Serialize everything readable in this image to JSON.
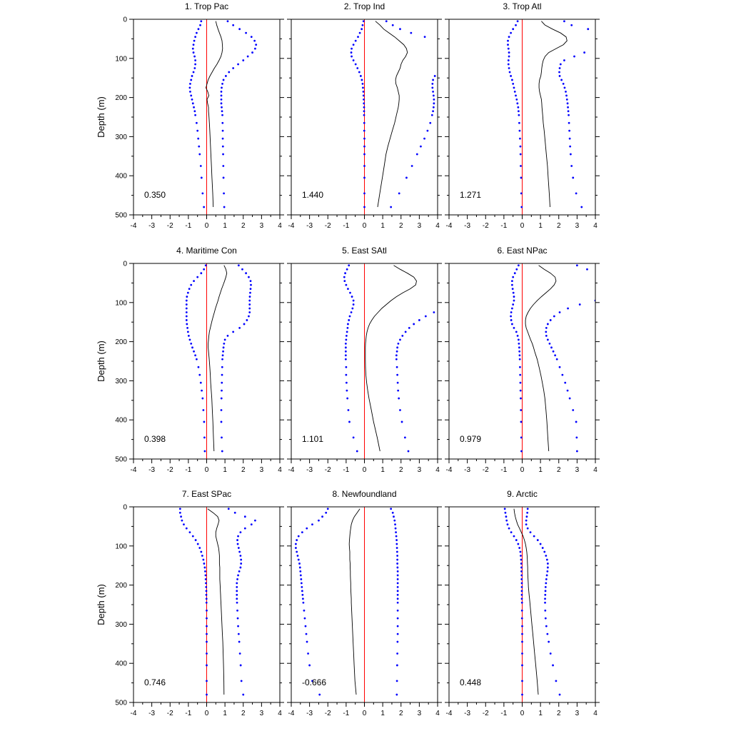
{
  "chart_data": {
    "type": "line",
    "xlim": [
      -4,
      4
    ],
    "ylim": [
      0,
      500
    ],
    "y_reversed": true,
    "xticks": [
      -4,
      -3,
      -2,
      -1,
      0,
      1,
      2,
      3,
      4
    ],
    "xticklabels": [
      "-4",
      "-3",
      "-2",
      "-1",
      "0",
      "1",
      "2",
      "3",
      "4"
    ],
    "yticks": [
      0,
      100,
      200,
      300,
      400,
      500
    ],
    "yticklabels": [
      "0",
      "100",
      "200",
      "300",
      "400",
      "500"
    ],
    "ylabel": "Depth (m)",
    "grid": false,
    "colors": {
      "mean": "#000000",
      "bounds": "#0000ff",
      "zero_line": "#ff0000",
      "axes": "#000000"
    },
    "depths": [
      5,
      15,
      25,
      35,
      45,
      55,
      65,
      75,
      85,
      95,
      105,
      115,
      125,
      135,
      145,
      155,
      165,
      175,
      185,
      195,
      205,
      215,
      225,
      235,
      245,
      265,
      285,
      305,
      325,
      345,
      375,
      405,
      445,
      480
    ],
    "panels": [
      {
        "title": "1. Trop Pac",
        "value": "0.350",
        "mean": [
          0.5,
          0.55,
          0.62,
          0.7,
          0.78,
          0.84,
          0.86,
          0.87,
          0.84,
          0.78,
          0.68,
          0.56,
          0.42,
          0.3,
          0.18,
          0.08,
          0.02,
          -0.04,
          0.06,
          0.12,
          0.02,
          0.05,
          0.1,
          0.1,
          0.12,
          0.15,
          0.17,
          0.19,
          0.21,
          0.23,
          0.26,
          0.29,
          0.33,
          0.36
        ],
        "lower": [
          -0.3,
          -0.35,
          -0.45,
          -0.55,
          -0.62,
          -0.68,
          -0.72,
          -0.75,
          -0.72,
          -0.66,
          -0.62,
          -0.62,
          -0.65,
          -0.72,
          -0.8,
          -0.85,
          -0.9,
          -0.92,
          -0.9,
          -0.85,
          -0.8,
          -0.75,
          -0.7,
          -0.65,
          -0.62,
          -0.55,
          -0.5,
          -0.46,
          -0.42,
          -0.38,
          -0.32,
          -0.28,
          -0.22,
          -0.15
        ],
        "upper": [
          1.15,
          1.45,
          1.8,
          2.15,
          2.45,
          2.62,
          2.7,
          2.65,
          2.5,
          2.25,
          2.0,
          1.72,
          1.45,
          1.22,
          1.05,
          0.92,
          0.86,
          0.82,
          0.8,
          0.8,
          0.8,
          0.8,
          0.82,
          0.84,
          0.86,
          0.87,
          0.88,
          0.88,
          0.89,
          0.9,
          0.91,
          0.92,
          0.94,
          0.96
        ]
      },
      {
        "title": "2. Trop Ind",
        "value": "1.440",
        "mean": [
          0.6,
          0.85,
          1.05,
          1.35,
          1.65,
          1.9,
          2.15,
          2.3,
          2.35,
          2.25,
          2.1,
          2.0,
          1.95,
          1.85,
          1.75,
          1.7,
          1.72,
          1.8,
          1.85,
          1.9,
          1.9,
          1.88,
          1.85,
          1.8,
          1.75,
          1.65,
          1.52,
          1.4,
          1.28,
          1.18,
          1.08,
          0.98,
          0.84,
          0.72
        ],
        "lower": [
          -0.05,
          -0.1,
          -0.15,
          -0.25,
          -0.35,
          -0.48,
          -0.6,
          -0.7,
          -0.72,
          -0.7,
          -0.6,
          -0.48,
          -0.38,
          -0.28,
          -0.2,
          -0.14,
          -0.1,
          -0.08,
          -0.06,
          -0.05,
          -0.04,
          -0.03,
          -0.02,
          -0.02,
          -0.02,
          -0.01,
          -0.01,
          0.0,
          0.0,
          0.0,
          0.0,
          0.0,
          0.0,
          0.0
        ],
        "upper": [
          1.2,
          1.55,
          1.95,
          2.55,
          3.3,
          4.2,
          4.6,
          4.6,
          4.6,
          4.6,
          4.6,
          4.5,
          4.3,
          4.05,
          3.85,
          3.75,
          3.72,
          3.72,
          3.75,
          3.78,
          3.8,
          3.8,
          3.78,
          3.75,
          3.7,
          3.6,
          3.45,
          3.28,
          3.08,
          2.88,
          2.6,
          2.3,
          1.9,
          1.45
        ]
      },
      {
        "title": "3. Trop Atl",
        "value": "1.271",
        "mean": [
          1.05,
          1.25,
          1.65,
          2.1,
          2.4,
          2.45,
          2.25,
          1.85,
          1.45,
          1.25,
          1.15,
          1.1,
          1.07,
          1.05,
          1.02,
          0.95,
          0.92,
          0.92,
          0.95,
          1.0,
          1.05,
          1.07,
          1.08,
          1.1,
          1.12,
          1.15,
          1.2,
          1.24,
          1.28,
          1.32,
          1.38,
          1.42,
          1.48,
          1.52
        ],
        "lower": [
          -0.25,
          -0.35,
          -0.5,
          -0.62,
          -0.72,
          -0.78,
          -0.78,
          -0.75,
          -0.72,
          -0.72,
          -0.75,
          -0.75,
          -0.72,
          -0.68,
          -0.62,
          -0.55,
          -0.5,
          -0.45,
          -0.4,
          -0.35,
          -0.3,
          -0.26,
          -0.22,
          -0.2,
          -0.18,
          -0.16,
          -0.14,
          -0.12,
          -0.1,
          -0.09,
          -0.08,
          -0.06,
          -0.05,
          -0.03
        ],
        "upper": [
          2.3,
          2.7,
          3.6,
          4.6,
          4.6,
          4.6,
          4.6,
          4.6,
          3.4,
          2.85,
          2.3,
          2.1,
          2.05,
          2.03,
          2.05,
          2.15,
          2.25,
          2.32,
          2.38,
          2.42,
          2.45,
          2.48,
          2.5,
          2.52,
          2.54,
          2.56,
          2.58,
          2.6,
          2.62,
          2.65,
          2.7,
          2.78,
          2.95,
          3.25
        ]
      },
      {
        "title": "4. Maritime Con",
        "value": "0.398",
        "mean": [
          0.95,
          1.05,
          1.1,
          1.05,
          0.98,
          0.9,
          0.82,
          0.75,
          0.68,
          0.62,
          0.55,
          0.48,
          0.42,
          0.36,
          0.3,
          0.25,
          0.2,
          0.15,
          0.12,
          0.1,
          0.08,
          0.08,
          0.1,
          0.12,
          0.14,
          0.17,
          0.2,
          0.22,
          0.25,
          0.28,
          0.31,
          0.34,
          0.37,
          0.4
        ],
        "lower": [
          -0.05,
          -0.15,
          -0.3,
          -0.5,
          -0.7,
          -0.85,
          -0.95,
          -1.02,
          -1.08,
          -1.1,
          -1.1,
          -1.1,
          -1.1,
          -1.1,
          -1.1,
          -1.08,
          -1.05,
          -1.02,
          -0.98,
          -0.92,
          -0.85,
          -0.78,
          -0.7,
          -0.62,
          -0.55,
          -0.45,
          -0.38,
          -0.32,
          -0.27,
          -0.22,
          -0.18,
          -0.14,
          -0.12,
          -0.1
        ],
        "upper": [
          1.75,
          1.95,
          2.15,
          2.3,
          2.4,
          2.42,
          2.4,
          2.38,
          2.36,
          2.35,
          2.35,
          2.35,
          2.35,
          2.3,
          2.2,
          2.05,
          1.8,
          1.45,
          1.15,
          1.0,
          0.95,
          0.92,
          0.9,
          0.88,
          0.86,
          0.85,
          0.84,
          0.83,
          0.82,
          0.81,
          0.8,
          0.8,
          0.82,
          0.85
        ]
      },
      {
        "title": "5. East SAtl",
        "value": "1.101",
        "mean": [
          1.6,
          1.95,
          2.35,
          2.7,
          2.85,
          2.8,
          2.5,
          2.1,
          1.75,
          1.45,
          1.2,
          0.95,
          0.75,
          0.55,
          0.4,
          0.28,
          0.2,
          0.14,
          0.1,
          0.08,
          0.06,
          0.05,
          0.05,
          0.05,
          0.05,
          0.06,
          0.08,
          0.12,
          0.18,
          0.25,
          0.38,
          0.5,
          0.7,
          0.85
        ],
        "lower": [
          -0.85,
          -0.95,
          -1.05,
          -1.1,
          -1.08,
          -1.0,
          -0.9,
          -0.78,
          -0.68,
          -0.6,
          -0.6,
          -0.65,
          -0.72,
          -0.8,
          -0.85,
          -0.9,
          -0.92,
          -0.95,
          -0.98,
          -1.0,
          -1.02,
          -1.02,
          -1.02,
          -1.02,
          -1.02,
          -1.0,
          -1.0,
          -0.98,
          -0.96,
          -0.93,
          -0.88,
          -0.82,
          -0.6,
          -0.4
        ],
        "upper": [
          4.6,
          4.6,
          4.6,
          4.6,
          4.6,
          4.6,
          4.6,
          4.6,
          4.6,
          4.6,
          4.6,
          4.6,
          3.8,
          3.35,
          3.0,
          2.7,
          2.45,
          2.25,
          2.08,
          1.95,
          1.85,
          1.8,
          1.78,
          1.75,
          1.75,
          1.78,
          1.8,
          1.82,
          1.84,
          1.88,
          1.95,
          2.05,
          2.22,
          2.4
        ]
      },
      {
        "title": "6. East NPac",
        "value": "0.979",
        "mean": [
          0.9,
          1.2,
          1.55,
          1.8,
          1.85,
          1.75,
          1.55,
          1.3,
          1.05,
          0.82,
          0.62,
          0.45,
          0.32,
          0.22,
          0.18,
          0.18,
          0.22,
          0.3,
          0.38,
          0.46,
          0.55,
          0.62,
          0.68,
          0.75,
          0.82,
          0.92,
          1.02,
          1.1,
          1.18,
          1.24,
          1.3,
          1.35,
          1.4,
          1.45
        ],
        "lower": [
          -0.2,
          -0.3,
          -0.4,
          -0.5,
          -0.55,
          -0.55,
          -0.52,
          -0.48,
          -0.45,
          -0.45,
          -0.5,
          -0.55,
          -0.6,
          -0.62,
          -0.6,
          -0.55,
          -0.45,
          -0.32,
          -0.25,
          -0.2,
          -0.18,
          -0.16,
          -0.15,
          -0.14,
          -0.13,
          -0.12,
          -0.11,
          -0.1,
          -0.09,
          -0.08,
          -0.07,
          -0.06,
          -0.05,
          -0.04
        ],
        "upper": [
          3.0,
          3.55,
          4.2,
          4.6,
          4.6,
          4.6,
          4.6,
          4.6,
          4.6,
          4.0,
          3.15,
          2.5,
          2.05,
          1.75,
          1.55,
          1.4,
          1.32,
          1.3,
          1.32,
          1.4,
          1.5,
          1.6,
          1.7,
          1.8,
          1.9,
          2.05,
          2.2,
          2.35,
          2.48,
          2.6,
          2.78,
          2.95,
          2.98,
          3.0
        ]
      },
      {
        "title": "7. East SPac",
        "value": "0.746",
        "mean": [
          0.05,
          0.35,
          0.6,
          0.68,
          0.62,
          0.55,
          0.5,
          0.5,
          0.55,
          0.6,
          0.65,
          0.68,
          0.7,
          0.7,
          0.7,
          0.72,
          0.72,
          0.72,
          0.72,
          0.73,
          0.74,
          0.75,
          0.76,
          0.77,
          0.78,
          0.8,
          0.82,
          0.84,
          0.86,
          0.88,
          0.9,
          0.92,
          0.94,
          0.95
        ],
        "lower": [
          -1.45,
          -1.45,
          -1.4,
          -1.35,
          -1.25,
          -1.1,
          -0.92,
          -0.75,
          -0.6,
          -0.48,
          -0.38,
          -0.3,
          -0.24,
          -0.18,
          -0.14,
          -0.1,
          -0.08,
          -0.06,
          -0.05,
          -0.04,
          -0.03,
          -0.02,
          -0.02,
          -0.01,
          -0.01,
          0.0,
          0.0,
          0.0,
          0.0,
          0.0,
          0.0,
          0.0,
          0.0,
          0.0
        ],
        "upper": [
          1.2,
          1.55,
          2.1,
          2.65,
          2.45,
          2.1,
          1.85,
          1.72,
          1.68,
          1.7,
          1.75,
          1.8,
          1.85,
          1.88,
          1.88,
          1.85,
          1.78,
          1.72,
          1.68,
          1.65,
          1.65,
          1.65,
          1.65,
          1.65,
          1.66,
          1.68,
          1.7,
          1.72,
          1.75,
          1.78,
          1.82,
          1.86,
          1.9,
          2.0
        ]
      },
      {
        "title": "8. Newfoundland",
        "value": "-0.666",
        "mean": [
          -0.25,
          -0.4,
          -0.55,
          -0.65,
          -0.72,
          -0.75,
          -0.78,
          -0.8,
          -0.82,
          -0.83,
          -0.82,
          -0.8,
          -0.8,
          -0.8,
          -0.78,
          -0.78,
          -0.77,
          -0.77,
          -0.76,
          -0.75,
          -0.75,
          -0.74,
          -0.73,
          -0.72,
          -0.72,
          -0.7,
          -0.68,
          -0.66,
          -0.64,
          -0.62,
          -0.59,
          -0.56,
          -0.52,
          -0.45
        ],
        "lower": [
          -2.0,
          -2.1,
          -2.3,
          -2.5,
          -2.85,
          -3.15,
          -3.4,
          -3.6,
          -3.7,
          -3.75,
          -3.75,
          -3.7,
          -3.65,
          -3.6,
          -3.55,
          -3.52,
          -3.5,
          -3.48,
          -3.46,
          -3.44,
          -3.42,
          -3.4,
          -3.38,
          -3.36,
          -3.34,
          -3.3,
          -3.26,
          -3.22,
          -3.18,
          -3.14,
          -3.08,
          -3.0,
          -2.85,
          -2.45
        ],
        "upper": [
          1.45,
          1.55,
          1.6,
          1.65,
          1.68,
          1.7,
          1.72,
          1.74,
          1.76,
          1.77,
          1.78,
          1.79,
          1.8,
          1.8,
          1.8,
          1.81,
          1.82,
          1.82,
          1.82,
          1.82,
          1.82,
          1.82,
          1.82,
          1.82,
          1.82,
          1.82,
          1.82,
          1.82,
          1.82,
          1.81,
          1.8,
          1.79,
          1.78,
          1.77
        ]
      },
      {
        "title": "9. Arctic",
        "value": "0.448",
        "mean": [
          -0.45,
          -0.42,
          -0.38,
          -0.32,
          -0.25,
          -0.15,
          -0.05,
          0.05,
          0.12,
          0.18,
          0.22,
          0.25,
          0.27,
          0.28,
          0.29,
          0.3,
          0.3,
          0.31,
          0.32,
          0.33,
          0.34,
          0.36,
          0.38,
          0.4,
          0.42,
          0.46,
          0.5,
          0.54,
          0.58,
          0.62,
          0.68,
          0.74,
          0.82,
          0.88
        ],
        "lower": [
          -0.95,
          -0.92,
          -0.88,
          -0.85,
          -0.8,
          -0.72,
          -0.6,
          -0.45,
          -0.32,
          -0.22,
          -0.15,
          -0.1,
          -0.08,
          -0.06,
          -0.05,
          -0.04,
          -0.04,
          -0.03,
          -0.03,
          -0.02,
          -0.02,
          -0.02,
          -0.02,
          -0.02,
          -0.01,
          -0.01,
          -0.01,
          0.0,
          0.0,
          0.0,
          0.0,
          0.0,
          0.0,
          0.0
        ],
        "upper": [
          0.3,
          0.28,
          0.25,
          0.22,
          0.22,
          0.3,
          0.45,
          0.65,
          0.85,
          1.0,
          1.12,
          1.22,
          1.3,
          1.36,
          1.4,
          1.4,
          1.38,
          1.35,
          1.32,
          1.3,
          1.28,
          1.27,
          1.26,
          1.25,
          1.25,
          1.26,
          1.28,
          1.32,
          1.38,
          1.45,
          1.55,
          1.68,
          1.85,
          2.05
        ]
      }
    ]
  }
}
